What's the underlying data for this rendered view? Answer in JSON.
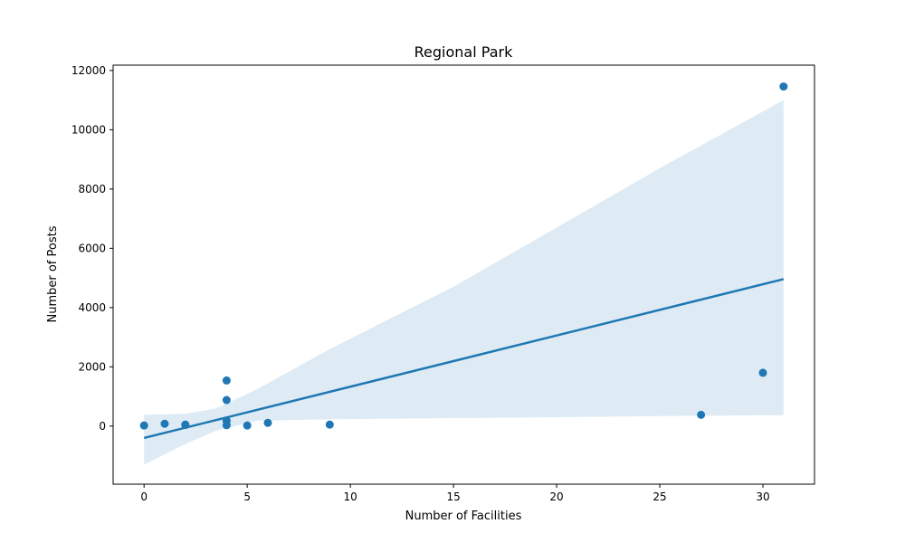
{
  "chart_data": {
    "type": "scatter",
    "title": "Regional Park",
    "xlabel": "Number of Facilities",
    "ylabel": "Number of Posts",
    "xlim": [
      -1.5,
      32.5
    ],
    "ylim": [
      -1960,
      12180
    ],
    "xticks": [
      0,
      5,
      10,
      15,
      20,
      25,
      30
    ],
    "yticks": [
      0,
      2000,
      4000,
      6000,
      8000,
      10000,
      12000
    ],
    "grid": false,
    "colors": {
      "points": "#1f77b4",
      "line": "#1f77b4",
      "band": "#1f77b4"
    },
    "points": [
      {
        "x": 0,
        "y": 20
      },
      {
        "x": 1,
        "y": 80
      },
      {
        "x": 2,
        "y": 50
      },
      {
        "x": 2,
        "y": 40
      },
      {
        "x": 4,
        "y": 1540
      },
      {
        "x": 4,
        "y": 880
      },
      {
        "x": 4,
        "y": 180
      },
      {
        "x": 4,
        "y": 30
      },
      {
        "x": 5,
        "y": 20
      },
      {
        "x": 6,
        "y": 110
      },
      {
        "x": 9,
        "y": 50
      },
      {
        "x": 27,
        "y": 380
      },
      {
        "x": 30,
        "y": 1800
      },
      {
        "x": 31,
        "y": 11460
      }
    ],
    "regression": {
      "line": [
        {
          "x": 0,
          "y": -400
        },
        {
          "x": 31,
          "y": 4960
        }
      ],
      "ci_upper": [
        {
          "x": 0,
          "y": 380
        },
        {
          "x": 2,
          "y": 420
        },
        {
          "x": 3.5,
          "y": 600
        },
        {
          "x": 5.5,
          "y": 1250
        },
        {
          "x": 9,
          "y": 2600
        },
        {
          "x": 15,
          "y": 4700
        },
        {
          "x": 20,
          "y": 6700
        },
        {
          "x": 25,
          "y": 8700
        },
        {
          "x": 31,
          "y": 11000
        }
      ],
      "ci_lower": [
        {
          "x": 0,
          "y": -1300
        },
        {
          "x": 2,
          "y": -600
        },
        {
          "x": 3.5,
          "y": -150
        },
        {
          "x": 5.5,
          "y": 180
        },
        {
          "x": 9,
          "y": 230
        },
        {
          "x": 15,
          "y": 270
        },
        {
          "x": 20,
          "y": 300
        },
        {
          "x": 25,
          "y": 340
        },
        {
          "x": 31,
          "y": 370
        }
      ]
    }
  }
}
